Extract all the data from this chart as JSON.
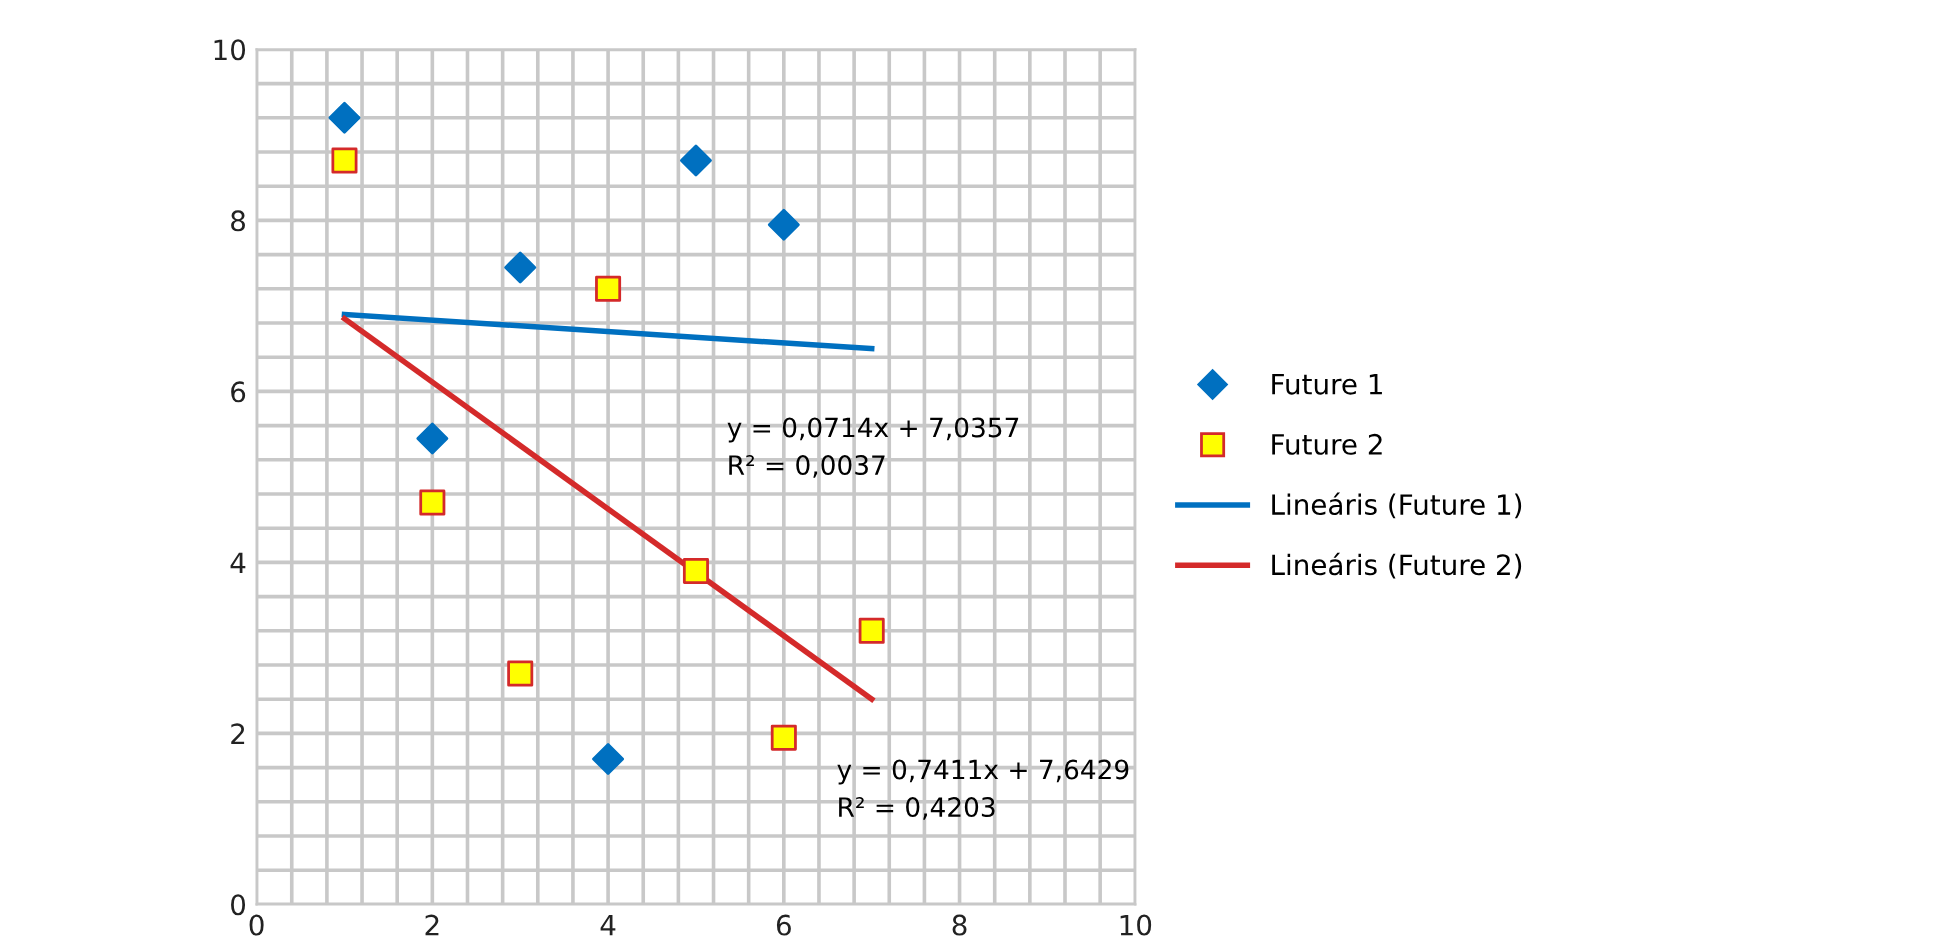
{
  "chart_data": {
    "type": "scatter",
    "xlim": [
      0,
      10
    ],
    "ylim": [
      0,
      10
    ],
    "xticks": [
      0,
      {
        "value": 0.4,
        "label": null
      },
      {
        "value": 0.8,
        "label": null
      },
      {
        "value": 1.2,
        "label": null
      },
      {
        "value": 1.6,
        "label": null
      },
      2,
      {
        "value": 2.4,
        "label": null
      },
      {
        "value": 2.8,
        "label": null
      },
      {
        "value": 3.2,
        "label": null
      },
      {
        "value": 3.6,
        "label": null
      },
      4,
      {
        "value": 4.4,
        "label": null
      },
      {
        "value": 4.8,
        "label": null
      },
      {
        "value": 5.2,
        "label": null
      },
      {
        "value": 5.6,
        "label": null
      },
      6,
      {
        "value": 6.4,
        "label": null
      },
      {
        "value": 6.8,
        "label": null
      },
      {
        "value": 7.2,
        "label": null
      },
      {
        "value": 7.6,
        "label": null
      },
      8,
      {
        "value": 8.4,
        "label": null
      },
      {
        "value": 8.8,
        "label": null
      },
      {
        "value": 9.2,
        "label": null
      },
      {
        "value": 9.6,
        "label": null
      },
      10
    ],
    "yticks": [
      0,
      {
        "value": 0.4,
        "label": null
      },
      {
        "value": 0.8,
        "label": null
      },
      {
        "value": 1.2,
        "label": null
      },
      {
        "value": 1.6,
        "label": null
      },
      2,
      {
        "value": 2.4,
        "label": null
      },
      {
        "value": 2.8,
        "label": null
      },
      {
        "value": 3.2,
        "label": null
      },
      {
        "value": 3.6,
        "label": null
      },
      4,
      {
        "value": 4.4,
        "label": null
      },
      {
        "value": 4.8,
        "label": null
      },
      {
        "value": 5.2,
        "label": null
      },
      {
        "value": 5.6,
        "label": null
      },
      6,
      {
        "value": 6.4,
        "label": null
      },
      {
        "value": 6.8,
        "label": null
      },
      {
        "value": 7.2,
        "label": null
      },
      {
        "value": 7.6,
        "label": null
      },
      8,
      {
        "value": 8.4,
        "label": null
      },
      {
        "value": 8.8,
        "label": null
      },
      {
        "value": 9.2,
        "label": null
      },
      {
        "value": 9.6,
        "label": null
      },
      10
    ],
    "grid": true,
    "legend": "right",
    "series": [
      {
        "name": "Future 1",
        "marker": "diamond",
        "color": "#0070c0",
        "x": [
          1,
          2,
          3,
          4,
          5,
          6
        ],
        "values": [
          9.2,
          5.45,
          7.45,
          1.7,
          8.7,
          7.95
        ]
      },
      {
        "name": "Future 2",
        "marker": "square",
        "color": "#ffff00",
        "x": [
          1,
          2,
          3,
          4,
          5,
          6,
          7
        ],
        "values": [
          8.7,
          4.7,
          2.7,
          7.2,
          3.9,
          1.95,
          3.2
        ]
      },
      {
        "name": "Lineáris (Future 1)",
        "type": "line",
        "marker": "none",
        "line_style": "solid",
        "color": "#0070c0",
        "x": [
          1,
          7
        ],
        "values": [
          6.9,
          6.5
        ]
      },
      {
        "name": "Lineáris (Future 2)",
        "type": "line",
        "marker": "none",
        "line_style": "solid",
        "color": "#d42a2a",
        "x": [
          1,
          7
        ],
        "values": [
          6.85,
          2.4
        ]
      }
    ],
    "annotations": [
      "y = 0,0714x + 7,0357\nR² = 0,0037",
      "y = 0,7411x + 7,6429\nR² = 0,4203"
    ]
  }
}
